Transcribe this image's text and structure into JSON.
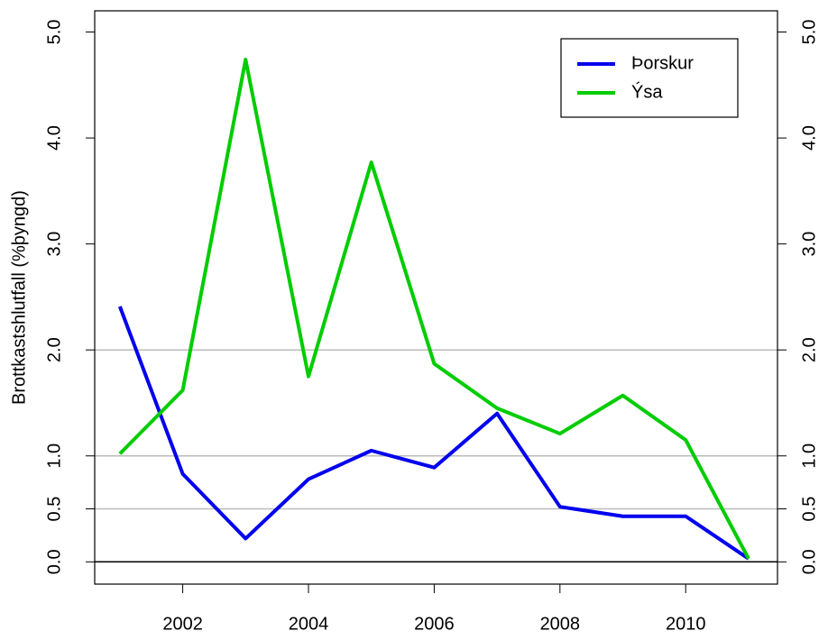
{
  "chart_data": {
    "type": "line",
    "y_label": "Brottkastshlutfall (%þyngd)",
    "x": [
      2001,
      2002,
      2003,
      2004,
      2005,
      2006,
      2007,
      2008,
      2009,
      2010,
      2011
    ],
    "series": [
      {
        "name": "Þorskur",
        "color": "#0000ee",
        "values": [
          2.41,
          0.83,
          0.22,
          0.78,
          1.05,
          0.89,
          1.4,
          0.52,
          0.43,
          0.43,
          0.03
        ]
      },
      {
        "name": "Ýsa",
        "color": "#00cc00",
        "values": [
          1.02,
          1.62,
          4.74,
          1.75,
          3.77,
          1.87,
          1.45,
          1.21,
          1.57,
          1.15,
          0.03
        ]
      }
    ],
    "xlim": [
      2000.6,
      2011.46
    ],
    "ylim": [
      -0.21,
      5.2
    ],
    "xticks": [
      2002,
      2004,
      2006,
      2008,
      2010
    ],
    "yticks": [
      {
        "value": 0,
        "label": "0.0"
      },
      {
        "value": 0.5,
        "label": "0.5"
      },
      {
        "value": 1,
        "label": "1.0"
      },
      {
        "value": 2,
        "label": "2.0"
      },
      {
        "value": 3,
        "label": "3.0"
      },
      {
        "value": 4,
        "label": "4.0"
      },
      {
        "value": 5,
        "label": "5.0"
      }
    ],
    "grid_lines": [
      0.5,
      1,
      2
    ],
    "grid_color": "#bbbbbb",
    "baseline": 0,
    "right_axis": true,
    "legend": "top-right"
  }
}
